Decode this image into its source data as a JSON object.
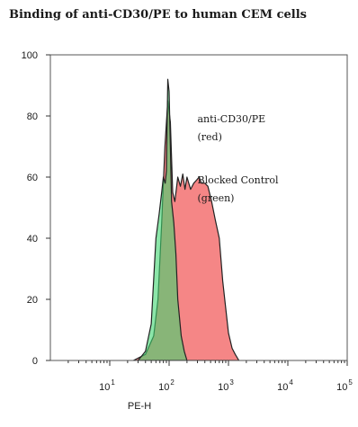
{
  "chart_data": {
    "type": "area",
    "title": "Binding of anti-CD30/PE to human CEM cells",
    "xlabel": "PE-H",
    "ylabel": "",
    "x_scale": "log",
    "xlim": [
      1,
      100000
    ],
    "ylim": [
      0,
      100
    ],
    "grid": false,
    "y_ticks": [
      {
        "value": 0,
        "label": "0"
      },
      {
        "value": 20,
        "label": "20"
      },
      {
        "value": 40,
        "label": "40"
      },
      {
        "value": 60,
        "label": "60"
      },
      {
        "value": 80,
        "label": "80"
      },
      {
        "value": 100,
        "label": "100"
      }
    ],
    "x_ticks": [
      {
        "value": 10,
        "base": "10",
        "exp": "1"
      },
      {
        "value": 100,
        "base": "10",
        "exp": "2"
      },
      {
        "value": 1000,
        "base": "10",
        "exp": "3"
      },
      {
        "value": 10000,
        "base": "10",
        "exp": "4"
      },
      {
        "value": 100000,
        "base": "10",
        "exp": "5"
      }
    ],
    "series": [
      {
        "color": "#f47f80",
        "points": [
          [
            25,
            0
          ],
          [
            40,
            2
          ],
          [
            55,
            8
          ],
          [
            65,
            20
          ],
          [
            75,
            45
          ],
          [
            85,
            70
          ],
          [
            95,
            85
          ],
          [
            105,
            78
          ],
          [
            115,
            55
          ],
          [
            125,
            52
          ],
          [
            140,
            60
          ],
          [
            155,
            57
          ],
          [
            170,
            61
          ],
          [
            185,
            56
          ],
          [
            200,
            60
          ],
          [
            230,
            56
          ],
          [
            260,
            58
          ],
          [
            290,
            59
          ],
          [
            320,
            60
          ],
          [
            350,
            58
          ],
          [
            400,
            58
          ],
          [
            450,
            57
          ],
          [
            520,
            52
          ],
          [
            600,
            46
          ],
          [
            700,
            40
          ],
          [
            800,
            26
          ],
          [
            900,
            17
          ],
          [
            1000,
            9
          ],
          [
            1150,
            4
          ],
          [
            1300,
            2
          ],
          [
            1500,
            0
          ]
        ]
      },
      {
        "color": "#3fd66f",
        "points": [
          [
            30,
            0
          ],
          [
            40,
            3
          ],
          [
            50,
            12
          ],
          [
            60,
            40
          ],
          [
            68,
            48
          ],
          [
            75,
            55
          ],
          [
            80,
            60
          ],
          [
            86,
            58
          ],
          [
            90,
            62
          ],
          [
            95,
            92
          ],
          [
            100,
            88
          ],
          [
            105,
            70
          ],
          [
            110,
            52
          ],
          [
            120,
            45
          ],
          [
            130,
            35
          ],
          [
            140,
            20
          ],
          [
            160,
            8
          ],
          [
            180,
            3
          ],
          [
            200,
            0
          ]
        ]
      }
    ],
    "annotations": [
      {
        "text": "anti-CD30/PE",
        "x": 300,
        "y": 78
      },
      {
        "text": "(red)",
        "x": 300,
        "y": 72
      },
      {
        "text": "Blocked Control",
        "x": 300,
        "y": 58
      },
      {
        "text": "(green)",
        "x": 300,
        "y": 52
      }
    ]
  }
}
